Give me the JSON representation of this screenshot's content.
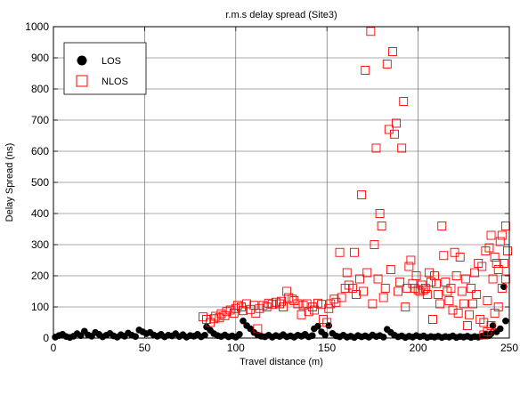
{
  "chart_data": {
    "type": "scatter",
    "title": "r.m.s delay spread (Site3)",
    "xlabel": "Travel distance (m)",
    "ylabel": "Delay Spread (ns)",
    "xlim": [
      0,
      250
    ],
    "ylim": [
      0,
      1000
    ],
    "xticks": [
      0,
      50,
      100,
      150,
      200,
      250
    ],
    "yticks": [
      0,
      100,
      200,
      300,
      400,
      500,
      600,
      700,
      800,
      900,
      1000
    ],
    "grid": true,
    "legend_placement": "top-left",
    "series": [
      {
        "name": "LOS",
        "marker": "filled-circle",
        "color": "#000000",
        "points": [
          [
            1,
            3
          ],
          [
            3,
            8
          ],
          [
            5,
            12
          ],
          [
            7,
            5
          ],
          [
            9,
            2
          ],
          [
            11,
            6
          ],
          [
            13,
            14
          ],
          [
            15,
            8
          ],
          [
            17,
            22
          ],
          [
            19,
            10
          ],
          [
            21,
            6
          ],
          [
            23,
            18
          ],
          [
            25,
            12
          ],
          [
            27,
            4
          ],
          [
            29,
            9
          ],
          [
            31,
            15
          ],
          [
            33,
            7
          ],
          [
            35,
            3
          ],
          [
            37,
            11
          ],
          [
            39,
            6
          ],
          [
            41,
            16
          ],
          [
            43,
            9
          ],
          [
            45,
            5
          ],
          [
            47,
            26
          ],
          [
            49,
            20
          ],
          [
            51,
            14
          ],
          [
            53,
            18
          ],
          [
            55,
            10
          ],
          [
            57,
            6
          ],
          [
            59,
            12
          ],
          [
            61,
            4
          ],
          [
            63,
            9
          ],
          [
            65,
            7
          ],
          [
            67,
            14
          ],
          [
            69,
            5
          ],
          [
            71,
            11
          ],
          [
            73,
            3
          ],
          [
            75,
            8
          ],
          [
            77,
            6
          ],
          [
            79,
            12
          ],
          [
            81,
            4
          ],
          [
            83,
            9
          ],
          [
            84,
            36
          ],
          [
            86,
            25
          ],
          [
            88,
            14
          ],
          [
            90,
            8
          ],
          [
            92,
            5
          ],
          [
            94,
            10
          ],
          [
            96,
            4
          ],
          [
            98,
            7
          ],
          [
            100,
            3
          ],
          [
            102,
            12
          ],
          [
            104,
            55
          ],
          [
            106,
            40
          ],
          [
            108,
            30
          ],
          [
            110,
            18
          ],
          [
            112,
            10
          ],
          [
            114,
            6
          ],
          [
            116,
            4
          ],
          [
            118,
            9
          ],
          [
            120,
            3
          ],
          [
            122,
            8
          ],
          [
            124,
            5
          ],
          [
            126,
            11
          ],
          [
            128,
            4
          ],
          [
            130,
            7
          ],
          [
            132,
            3
          ],
          [
            134,
            9
          ],
          [
            136,
            6
          ],
          [
            138,
            12
          ],
          [
            140,
            4
          ],
          [
            142,
            8
          ],
          [
            143,
            30
          ],
          [
            145,
            38
          ],
          [
            147,
            20
          ],
          [
            149,
            10
          ],
          [
            151,
            40
          ],
          [
            153,
            15
          ],
          [
            155,
            7
          ],
          [
            157,
            4
          ],
          [
            159,
            9
          ],
          [
            161,
            3
          ],
          [
            163,
            6
          ],
          [
            165,
            2
          ],
          [
            167,
            8
          ],
          [
            169,
            4
          ],
          [
            171,
            7
          ],
          [
            173,
            3
          ],
          [
            175,
            10
          ],
          [
            177,
            5
          ],
          [
            179,
            8
          ],
          [
            181,
            3
          ],
          [
            183,
            28
          ],
          [
            185,
            18
          ],
          [
            187,
            9
          ],
          [
            189,
            4
          ],
          [
            191,
            7
          ],
          [
            193,
            2
          ],
          [
            195,
            6
          ],
          [
            197,
            3
          ],
          [
            199,
            8
          ],
          [
            201,
            4
          ],
          [
            203,
            7
          ],
          [
            205,
            2
          ],
          [
            207,
            5
          ],
          [
            209,
            3
          ],
          [
            211,
            6
          ],
          [
            213,
            2
          ],
          [
            215,
            5
          ],
          [
            217,
            3
          ],
          [
            219,
            7
          ],
          [
            221,
            2
          ],
          [
            223,
            5
          ],
          [
            225,
            3
          ],
          [
            227,
            6
          ],
          [
            229,
            2
          ],
          [
            231,
            5
          ],
          [
            233,
            3
          ],
          [
            235,
            6
          ],
          [
            237,
            12
          ],
          [
            239,
            8
          ],
          [
            240,
            14
          ],
          [
            241,
            40
          ],
          [
            243,
            20
          ],
          [
            245,
            30
          ],
          [
            247,
            165
          ],
          [
            248,
            55
          ]
        ]
      },
      {
        "name": "NLOS",
        "marker": "open-square",
        "color": "#ff0000",
        "points": [
          [
            82,
            68
          ],
          [
            84,
            60
          ],
          [
            86,
            50
          ],
          [
            88,
            62
          ],
          [
            89,
            70
          ],
          [
            91,
            65
          ],
          [
            92,
            78
          ],
          [
            94,
            72
          ],
          [
            95,
            85
          ],
          [
            97,
            90
          ],
          [
            99,
            80
          ],
          [
            100,
            95
          ],
          [
            101,
            105
          ],
          [
            103,
            100
          ],
          [
            104,
            88
          ],
          [
            106,
            110
          ],
          [
            108,
            92
          ],
          [
            110,
            105
          ],
          [
            111,
            80
          ],
          [
            112,
            30
          ],
          [
            113,
            95
          ],
          [
            115,
            105
          ],
          [
            117,
            100
          ],
          [
            118,
            112
          ],
          [
            120,
            108
          ],
          [
            122,
            115
          ],
          [
            124,
            110
          ],
          [
            125,
            118
          ],
          [
            126,
            100
          ],
          [
            128,
            150
          ],
          [
            129,
            130
          ],
          [
            131,
            125
          ],
          [
            132,
            120
          ],
          [
            134,
            110
          ],
          [
            136,
            75
          ],
          [
            137,
            105
          ],
          [
            139,
            110
          ],
          [
            140,
            85
          ],
          [
            142,
            100
          ],
          [
            143,
            90
          ],
          [
            145,
            112
          ],
          [
            147,
            108
          ],
          [
            148,
            60
          ],
          [
            150,
            50
          ],
          [
            151,
            95
          ],
          [
            152,
            110
          ],
          [
            154,
            125
          ],
          [
            155,
            115
          ],
          [
            157,
            275
          ],
          [
            158,
            130
          ],
          [
            160,
            160
          ],
          [
            161,
            210
          ],
          [
            162,
            170
          ],
          [
            164,
            160
          ],
          [
            165,
            275
          ],
          [
            166,
            140
          ],
          [
            168,
            190
          ],
          [
            169,
            460
          ],
          [
            170,
            150
          ],
          [
            171,
            860
          ],
          [
            172,
            210
          ],
          [
            174,
            985
          ],
          [
            175,
            110
          ],
          [
            176,
            300
          ],
          [
            177,
            610
          ],
          [
            178,
            190
          ],
          [
            179,
            400
          ],
          [
            180,
            360
          ],
          [
            181,
            130
          ],
          [
            182,
            160
          ],
          [
            183,
            880
          ],
          [
            184,
            670
          ],
          [
            185,
            220
          ],
          [
            186,
            920
          ],
          [
            187,
            655
          ],
          [
            188,
            690
          ],
          [
            189,
            150
          ],
          [
            190,
            180
          ],
          [
            191,
            610
          ],
          [
            192,
            760
          ],
          [
            193,
            100
          ],
          [
            194,
            160
          ],
          [
            195,
            230
          ],
          [
            196,
            250
          ],
          [
            197,
            175
          ],
          [
            198,
            160
          ],
          [
            199,
            200
          ],
          [
            200,
            155
          ],
          [
            201,
            150
          ],
          [
            202,
            170
          ],
          [
            203,
            155
          ],
          [
            204,
            160
          ],
          [
            205,
            140
          ],
          [
            206,
            210
          ],
          [
            207,
            180
          ],
          [
            208,
            60
          ],
          [
            209,
            200
          ],
          [
            210,
            175
          ],
          [
            211,
            140
          ],
          [
            212,
            110
          ],
          [
            213,
            360
          ],
          [
            214,
            265
          ],
          [
            215,
            180
          ],
          [
            216,
            150
          ],
          [
            217,
            120
          ],
          [
            218,
            160
          ],
          [
            219,
            90
          ],
          [
            220,
            275
          ],
          [
            221,
            200
          ],
          [
            222,
            80
          ],
          [
            223,
            260
          ],
          [
            224,
            150
          ],
          [
            225,
            110
          ],
          [
            226,
            190
          ],
          [
            227,
            40
          ],
          [
            228,
            75
          ],
          [
            229,
            160
          ],
          [
            230,
            110
          ],
          [
            231,
            210
          ],
          [
            232,
            140
          ],
          [
            233,
            240
          ],
          [
            234,
            60
          ],
          [
            235,
            230
          ],
          [
            236,
            50
          ],
          [
            237,
            280
          ],
          [
            238,
            120
          ],
          [
            239,
            290
          ],
          [
            240,
            330
          ],
          [
            241,
            190
          ],
          [
            242,
            260
          ],
          [
            243,
            240
          ],
          [
            244,
            220
          ],
          [
            245,
            310
          ],
          [
            246,
            330
          ],
          [
            247,
            240
          ],
          [
            248,
            360
          ],
          [
            249,
            280
          ],
          [
            248,
            190
          ],
          [
            246,
            160
          ],
          [
            244,
            100
          ],
          [
            242,
            80
          ],
          [
            240,
            40
          ],
          [
            238,
            20
          ],
          [
            236,
            10
          ]
        ]
      }
    ]
  }
}
